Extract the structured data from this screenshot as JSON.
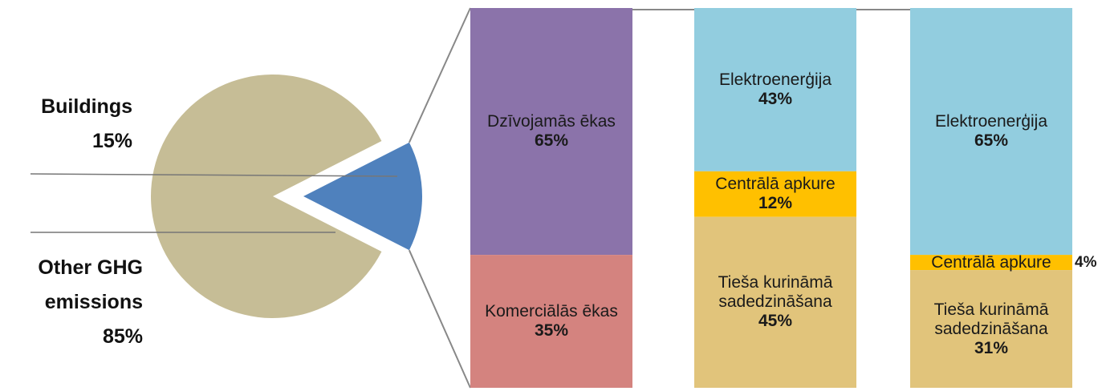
{
  "chart_data": [
    {
      "type": "pie",
      "categories": [
        "Buildings",
        "Other GHG emissions"
      ],
      "values": [
        15,
        85
      ],
      "value_labels": [
        "15%",
        "85%"
      ],
      "colors": [
        "#4f81bd",
        "#c6bd96"
      ]
    },
    {
      "type": "bar",
      "stacked": true,
      "columns": [
        {
          "segments": [
            {
              "name": "Dzīvojamās ēkas",
              "value": 65,
              "value_label": "65%",
              "color": "#8b73aa"
            },
            {
              "name": "Komerciālās ēkas",
              "value": 35,
              "value_label": "35%",
              "color": "#d4837f"
            }
          ]
        },
        {
          "segments": [
            {
              "name": "Elektroenerģija",
              "value": 43,
              "value_label": "43%",
              "color": "#92cddf"
            },
            {
              "name": "Centrālā apkure",
              "value": 12,
              "value_label": "12%",
              "color": "#ffc000"
            },
            {
              "name": "Tieša kurināmā sadedzināšana",
              "value": 45,
              "value_label": "45%",
              "color": "#e1c47b"
            }
          ]
        },
        {
          "segments": [
            {
              "name": "Elektroenerģija",
              "value": 65,
              "value_label": "65%",
              "color": "#92cddf"
            },
            {
              "name": "Centrālā apkure",
              "value": 4,
              "value_label": "4%",
              "color": "#ffc000"
            },
            {
              "name": "Tieša kurināmā sadedzināšana",
              "value": 31,
              "value_label": "31%",
              "color": "#e1c47b"
            }
          ]
        }
      ]
    }
  ]
}
